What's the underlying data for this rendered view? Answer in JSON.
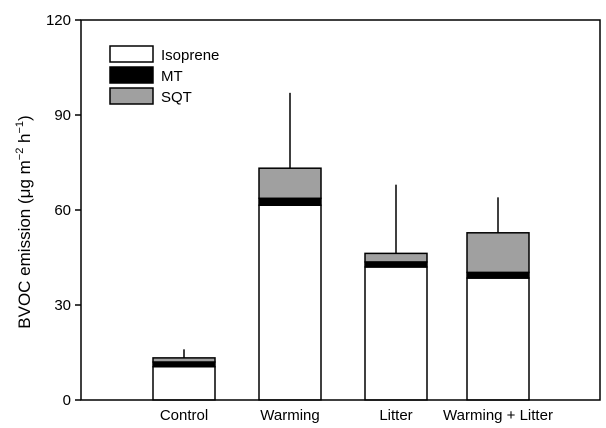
{
  "chart_data": {
    "type": "bar",
    "stacked": true,
    "categories": [
      "Control",
      "Warming",
      "Litter",
      "Warming + Litter"
    ],
    "series": [
      {
        "name": "Isoprene",
        "values": [
          10.5,
          61.5,
          42.0,
          38.5
        ],
        "color": "#ffffff"
      },
      {
        "name": "MT",
        "values": [
          1.5,
          2.2,
          1.6,
          1.8
        ],
        "color": "#000000"
      },
      {
        "name": "SQT",
        "values": [
          1.3,
          9.5,
          2.7,
          12.5
        ],
        "color": "#a0a0a0"
      }
    ],
    "error_top": [
      16,
      97,
      68,
      64
    ],
    "ylabel": {
      "main": "BVOC emission (μg m",
      "sup1": "−2",
      "mid": " h",
      "sup2": "−1",
      "end": ")"
    },
    "ylim": [
      0,
      120
    ],
    "yticks": [
      0,
      30,
      60,
      90,
      120
    ],
    "grid": false,
    "legend_position": "top-left"
  }
}
